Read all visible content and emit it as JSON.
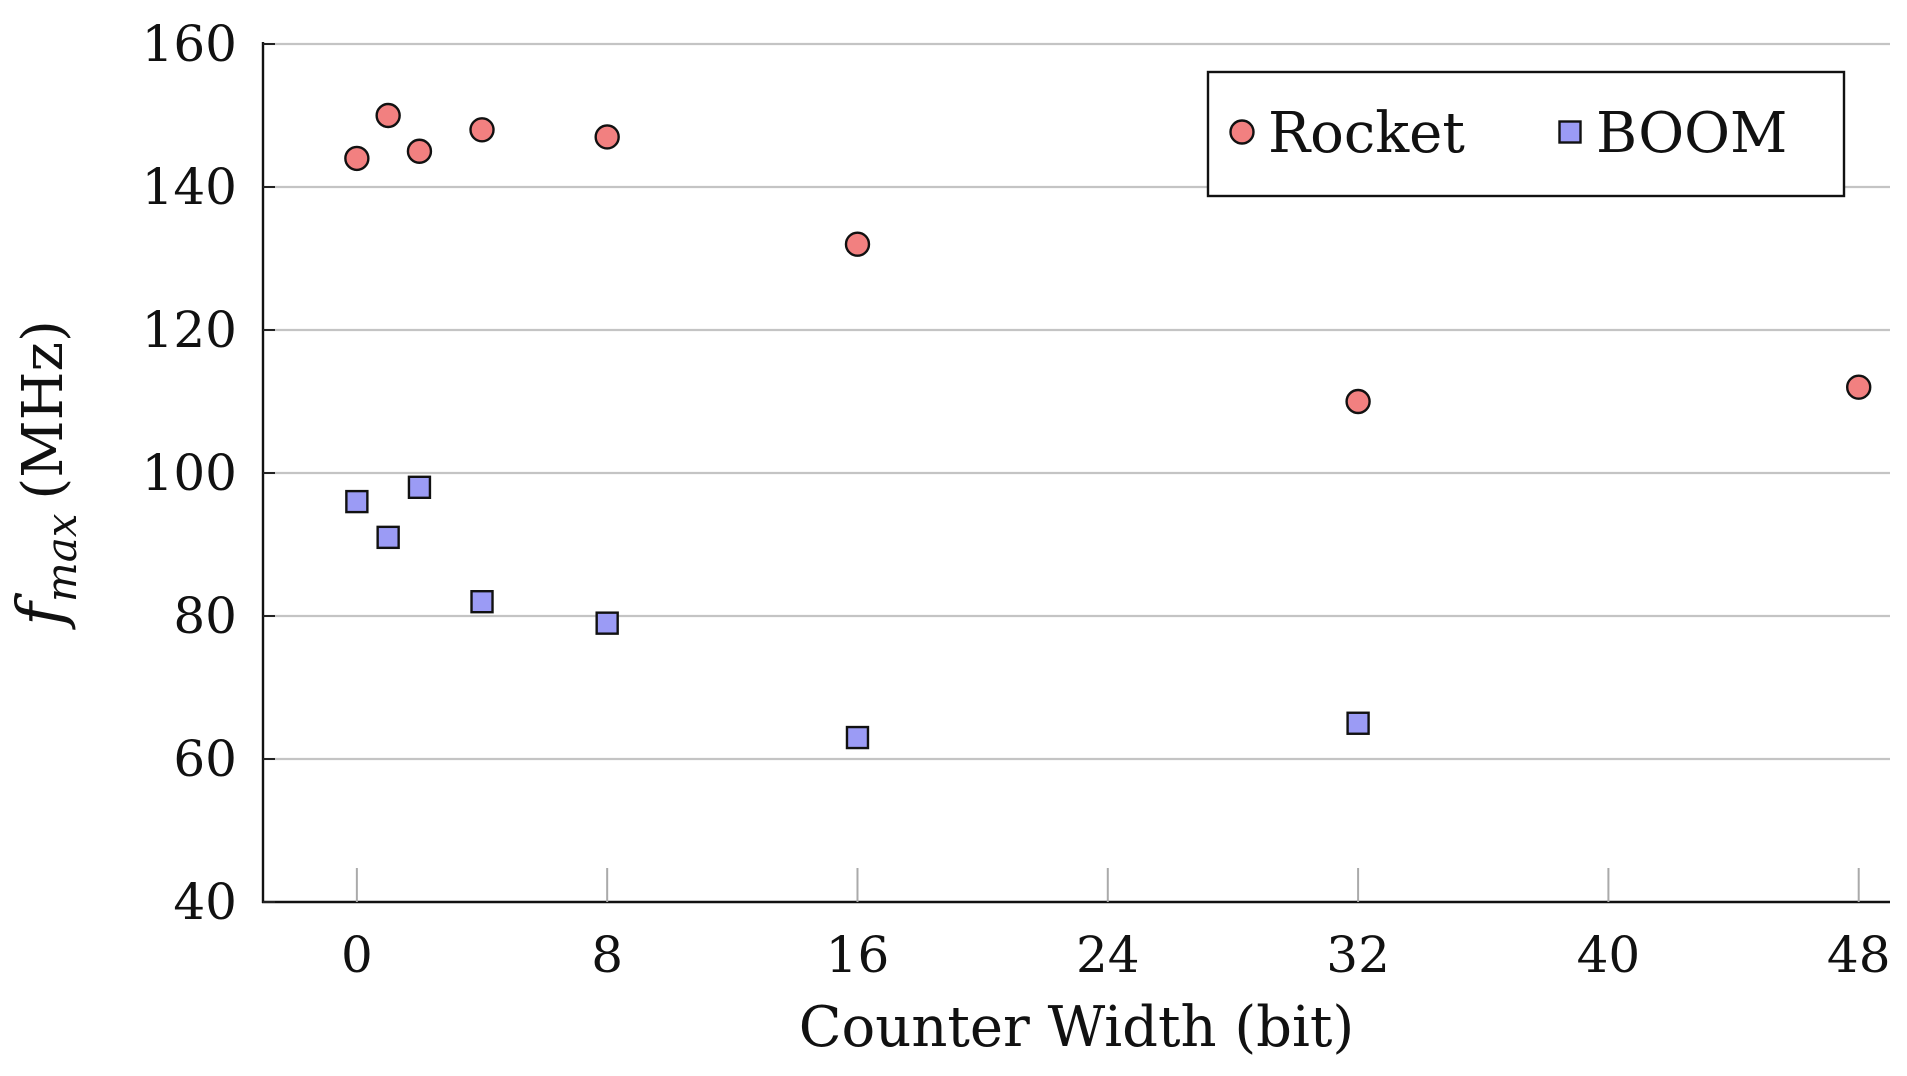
{
  "chart_data": {
    "type": "scatter",
    "title": "",
    "xlabel": "Counter Width (bit)",
    "ylabel_main": "f",
    "ylabel_sub": "max",
    "ylabel_unit": "(MHz)",
    "xlim": [
      -3,
      49
    ],
    "ylim": [
      40,
      160
    ],
    "xticks": [
      0,
      8,
      16,
      24,
      32,
      40,
      48
    ],
    "yticks": [
      40,
      60,
      80,
      100,
      120,
      140,
      160
    ],
    "grid": "horizontal",
    "legend_position": "top-right",
    "series": [
      {
        "name": "Rocket",
        "marker": "circle",
        "color": "#f28080",
        "x": [
          0,
          1,
          2,
          4,
          8,
          16,
          32,
          48
        ],
        "y": [
          144,
          150,
          145,
          148,
          147,
          132,
          110,
          112
        ]
      },
      {
        "name": "BOOM",
        "marker": "square",
        "color": "#9b9bf5",
        "x": [
          0,
          1,
          2,
          4,
          8,
          16,
          32
        ],
        "y": [
          96,
          91,
          98,
          82,
          79,
          63,
          65
        ]
      }
    ]
  }
}
